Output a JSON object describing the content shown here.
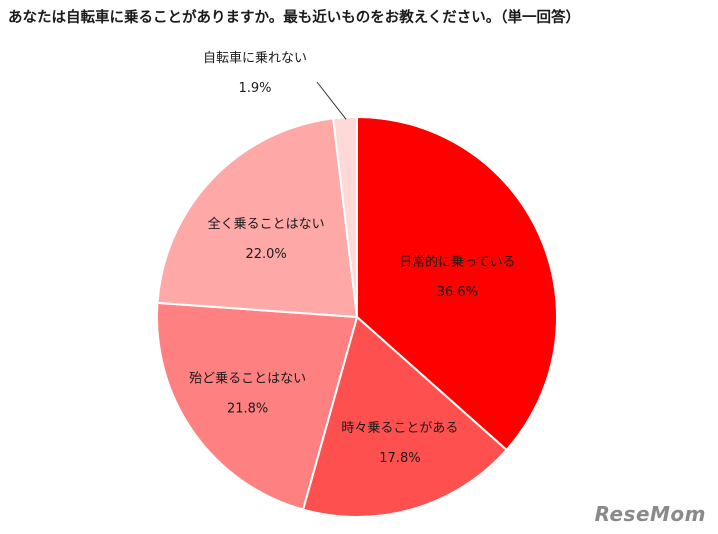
{
  "title": "あなたは自転車に乗ることがありますか。最も近いものをお教えください。（単一回答）",
  "logo_text": "ReseMom",
  "chart_data": {
    "type": "pie",
    "title": "あなたは自転車に乗ることがありますか。最も近いものをお教えください。（単一回答）",
    "start_angle_deg": -90,
    "direction": "clockwise",
    "slices": [
      {
        "label": "日常的に乗っている",
        "value": 36.6,
        "value_label": "36.6%",
        "color": "#ff0000",
        "text_color": "#ffffff"
      },
      {
        "label": "時々乗ることがある",
        "value": 17.8,
        "value_label": "17.8%",
        "color": "#ff5050",
        "text_color": "#ffffff"
      },
      {
        "label": "殆ど乗ることはない",
        "value": 21.8,
        "value_label": "21.8%",
        "color": "#ff8080",
        "text_color": "#1a1a1a"
      },
      {
        "label": "全く乗ることはない",
        "value": 22.0,
        "value_label": "22.0%",
        "color": "#ffa8a8",
        "text_color": "#1a1a1a"
      },
      {
        "label": "自転車に乗れない",
        "value": 1.9,
        "value_label": "1.9%",
        "color": "#ffd8d8",
        "text_color": "#1a1a1a"
      }
    ]
  }
}
